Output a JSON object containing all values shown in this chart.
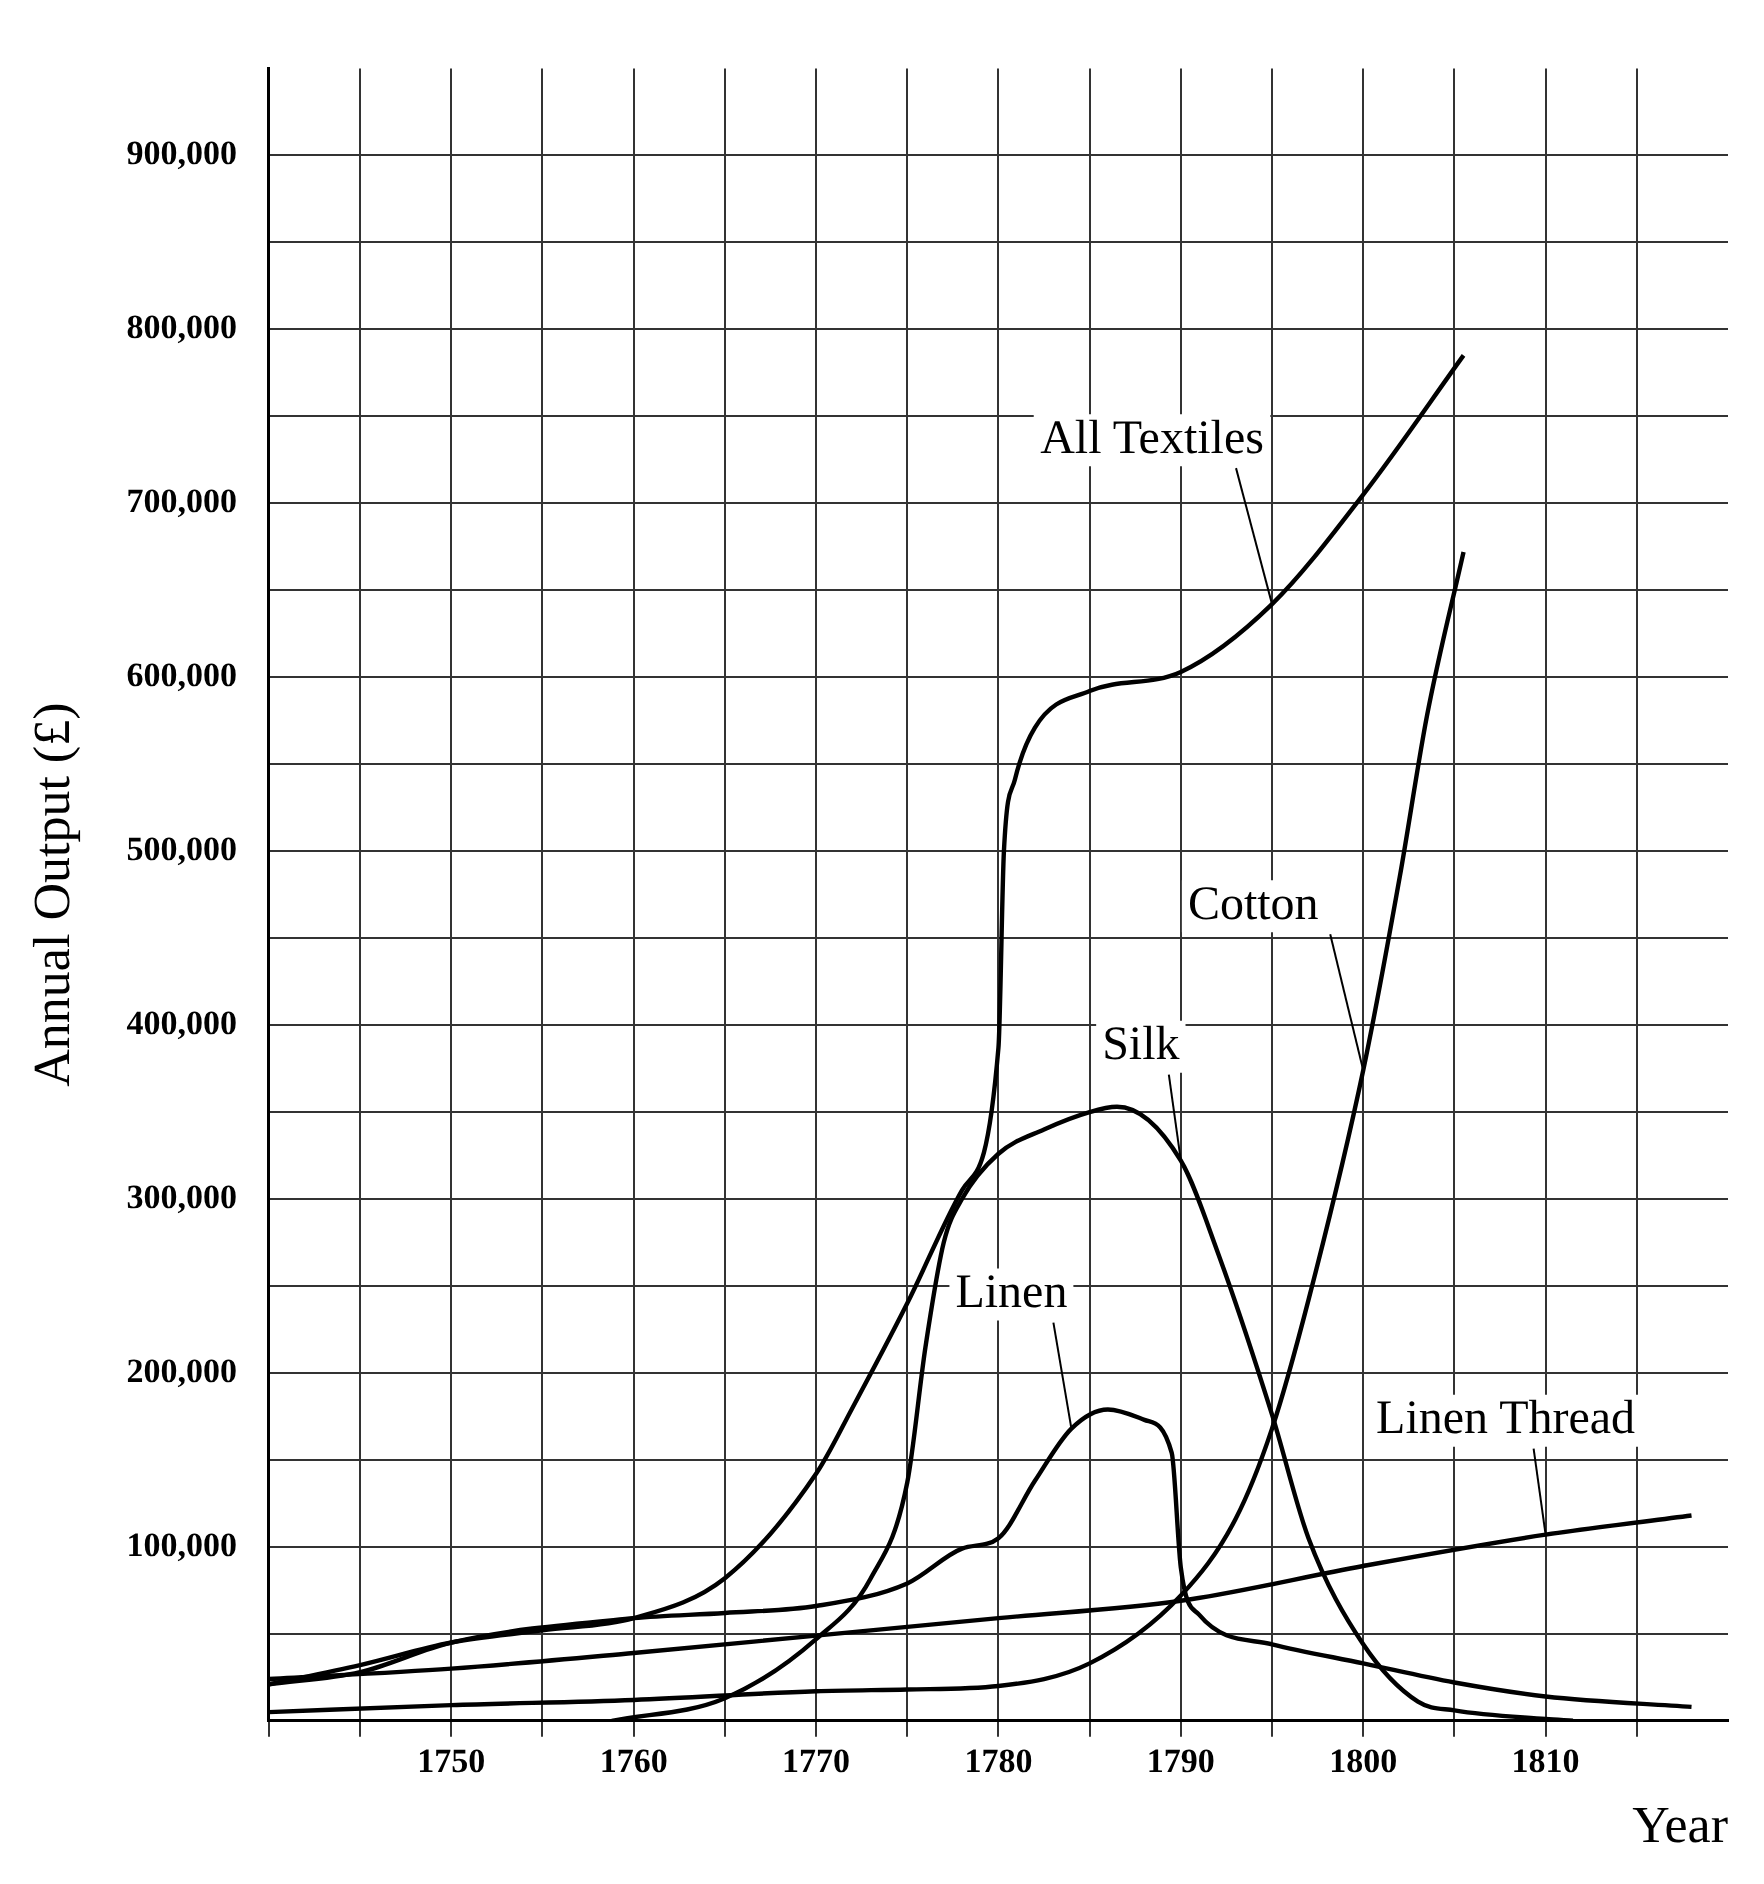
{
  "chart_data": {
    "type": "line",
    "xlabel": "Year",
    "ylabel": "Annual Output (£)",
    "xlim": [
      1740,
      1820
    ],
    "ylim": [
      0,
      950000
    ],
    "xticks": [
      {
        "value": 1740,
        "label": null
      },
      {
        "value": 1745,
        "label": null
      },
      1750,
      {
        "value": 1755,
        "label": null
      },
      1760,
      {
        "value": 1765,
        "label": null
      },
      1770,
      {
        "value": 1775,
        "label": null
      },
      1780,
      {
        "value": 1785,
        "label": null
      },
      1790,
      {
        "value": 1795,
        "label": null
      },
      1800,
      {
        "value": 1805,
        "label": null
      },
      1810,
      {
        "value": 1815,
        "label": null
      }
    ],
    "yticks": [
      {
        "value": 0,
        "label": null
      },
      {
        "value": 50000,
        "label": null
      },
      {
        "value": 100000,
        "label": "100,000"
      },
      {
        "value": 150000,
        "label": null
      },
      {
        "value": 200000,
        "label": "200,000"
      },
      {
        "value": 250000,
        "label": null
      },
      {
        "value": 300000,
        "label": "300,000"
      },
      {
        "value": 350000,
        "label": null
      },
      {
        "value": 400000,
        "label": "400,000"
      },
      {
        "value": 450000,
        "label": null
      },
      {
        "value": 500000,
        "label": "500,000"
      },
      {
        "value": 550000,
        "label": null
      },
      {
        "value": 600000,
        "label": "600,000"
      },
      {
        "value": 650000,
        "label": null
      },
      {
        "value": 700000,
        "label": "700,000"
      },
      {
        "value": 750000,
        "label": null
      },
      {
        "value": 800000,
        "label": "800,000"
      },
      {
        "value": 850000,
        "label": null
      },
      {
        "value": 900000,
        "label": "900,000"
      }
    ],
    "grid": true,
    "legend": false,
    "marker": "none",
    "line_style": "solid",
    "series": [
      {
        "name": "All Textiles",
        "color": "#000000",
        "x": [
          1740,
          1745,
          1750,
          1755,
          1760,
          1765,
          1770,
          1772,
          1775,
          1778,
          1780,
          1780.3,
          1780.9,
          1782,
          1785,
          1790,
          1795,
          1800,
          1805.5
        ],
        "values": [
          21000,
          32000,
          45000,
          52000,
          59000,
          82000,
          142000,
          180000,
          240000,
          305000,
          387000,
          500000,
          541000,
          571000,
          592000,
          603000,
          642000,
          705000,
          785000
        ]
      },
      {
        "name": "Cotton",
        "color": "#000000",
        "x": [
          1740,
          1750,
          1760,
          1770,
          1775,
          1780,
          1785,
          1790,
          1793,
          1795,
          1797,
          1800,
          1802,
          1803.5,
          1805.5
        ],
        "values": [
          5000,
          9000,
          12000,
          17000,
          18000,
          20000,
          33000,
          72000,
          116000,
          168000,
          242000,
          374000,
          485000,
          578000,
          672000
        ]
      },
      {
        "name": "Silk",
        "color": "#000000",
        "x": [
          1758.8,
          1765,
          1770,
          1773,
          1775,
          1776,
          1777,
          1778,
          1780,
          1782.5,
          1785,
          1786.5,
          1790,
          1792,
          1795,
          1797,
          1800,
          1803,
          1805,
          1810,
          1811.5
        ],
        "values": [
          0,
          13000,
          47000,
          82000,
          137000,
          215000,
          275000,
          300000,
          326000,
          340000,
          350000,
          353000,
          322000,
          270000,
          176000,
          105000,
          44000,
          11000,
          6000,
          1000,
          0
        ]
      },
      {
        "name": "Linen",
        "color": "#000000",
        "x": [
          1740,
          1745,
          1750,
          1760,
          1765,
          1770,
          1775,
          1778,
          1780,
          1782,
          1784,
          1786,
          1788,
          1789.5,
          1790,
          1791,
          1795,
          1800,
          1805,
          1810,
          1818
        ],
        "values": [
          21000,
          28000,
          45000,
          59000,
          62000,
          66000,
          79000,
          99000,
          105000,
          138000,
          168000,
          179000,
          173000,
          154000,
          88000,
          61000,
          44000,
          33000,
          22000,
          14000,
          8000
        ]
      },
      {
        "name": "Linen Thread",
        "color": "#000000",
        "x": [
          1740,
          1750,
          1760,
          1770,
          1780,
          1790,
          1800,
          1810,
          1818
        ],
        "values": [
          24000,
          30000,
          39000,
          49000,
          59000,
          69000,
          89000,
          107000,
          118000
        ]
      }
    ]
  }
}
